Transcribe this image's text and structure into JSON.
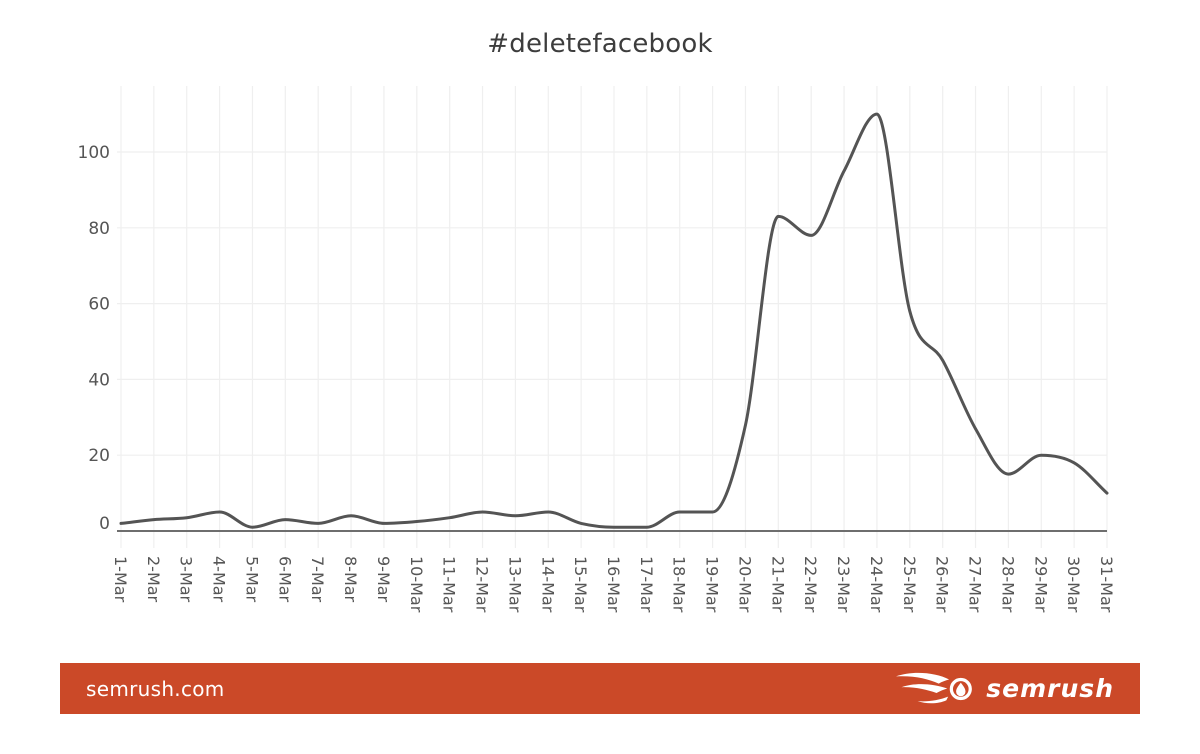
{
  "title": "#deletefacebook",
  "footer": {
    "site": "semrush.com",
    "brand": "semrush",
    "bg_color": "#cb4928",
    "text_color": "#ffffff"
  },
  "chart_data": {
    "type": "line",
    "title": "#deletefacebook",
    "categories": [
      "1-Mar",
      "2-Mar",
      "3-Mar",
      "4-Mar",
      "5-Mar",
      "6-Mar",
      "7-Mar",
      "8-Mar",
      "9-Mar",
      "10-Mar",
      "11-Mar",
      "12-Mar",
      "13-Mar",
      "14-Mar",
      "15-Mar",
      "16-Mar",
      "17-Mar",
      "18-Mar",
      "19-Mar",
      "20-Mar",
      "21-Mar",
      "22-Mar",
      "23-Mar",
      "24-Mar",
      "25-Mar",
      "26-Mar",
      "27-Mar",
      "28-Mar",
      "29-Mar",
      "30-Mar",
      "31-Mar"
    ],
    "values": [
      2,
      3,
      3.5,
      5,
      1,
      3,
      2,
      4,
      2,
      2.5,
      3.5,
      5,
      4,
      5,
      2,
      1,
      1,
      5,
      5,
      28,
      83,
      78,
      95,
      110,
      58,
      45,
      27,
      15,
      20,
      18,
      10
    ],
    "xlabel": "",
    "ylabel": "",
    "ylim": [
      0,
      115
    ],
    "yticks": [
      0,
      20,
      40,
      60,
      80,
      100
    ],
    "grid": true,
    "legend": "none",
    "line_color": "#545454",
    "grid_color": "#efefef",
    "axis_color": "#6e6e6e",
    "label_color": "#565656"
  }
}
